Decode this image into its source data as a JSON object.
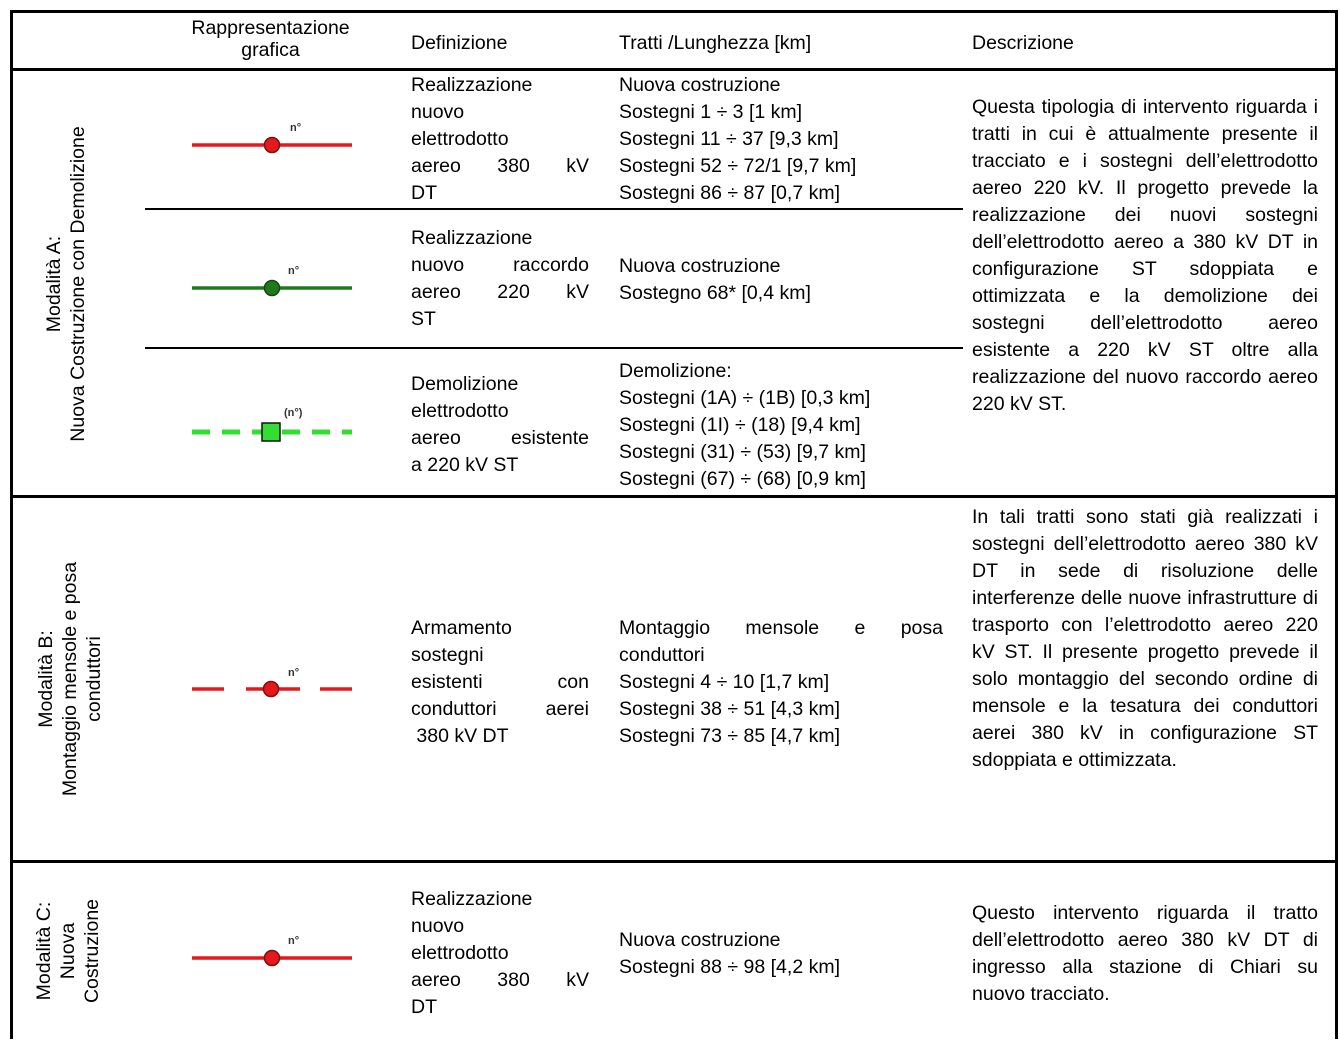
{
  "headers": {
    "grafica": "Rappresentazione grafica",
    "definizione": "Definizione",
    "tratti": "Tratti /Lunghezza [km]",
    "descrizione": "Descrizione"
  },
  "symbols": {
    "label_n": "n°",
    "label_n_paren": "(n°)",
    "red": "#e5191b",
    "green": "#1f7a1f",
    "light_green": "#33dd33"
  },
  "modalita_a": {
    "label_line1": "Modalità A:",
    "label_line2": "Nuova Costruzione con Demolizione",
    "rows": [
      {
        "definizione": [
          "Realizzazione",
          "nuovo",
          "elettrodotto",
          "aereo 380 kV",
          "DT"
        ],
        "tratti": [
          "Nuova costruzione",
          "Sostegni 1 ÷ 3 [1 km]",
          "Sostegni 11 ÷ 37 [9,3 km]",
          "Sostegni 52 ÷ 72/1 [9,7 km]",
          "Sostegni 86 ÷ 87 [0,7 km]"
        ]
      },
      {
        "definizione": [
          "Realizzazione",
          "nuovo raccordo",
          "aereo 220 kV",
          "ST"
        ],
        "tratti": [
          "Nuova costruzione",
          "Sostegno 68* [0,4 km]"
        ]
      },
      {
        "definizione": [
          "Demolizione",
          "elettrodotto",
          "aereo esistente",
          "a 220 kV ST"
        ],
        "tratti": [
          "Demolizione:",
          "Sostegni (1A) ÷ (1B) [0,3 km]",
          "Sostegni (1I) ÷ (18) [9,4 km]",
          "Sostegni (31) ÷ (53) [9,7 km]",
          "Sostegni (67) ÷ (68) [0,9 km]"
        ]
      }
    ],
    "descrizione": "Questa tipologia di intervento riguarda i tratti in cui è attualmente presente il tracciato e i sostegni dell’elettrodotto aereo 220 kV. Il progetto prevede la realizzazione dei nuovi sostegni dell’elettrodotto aereo a 380 kV DT in configurazione ST sdoppiata e ottimizzata e la demolizione dei sostegni dell’elettrodotto aereo esistente a 220 kV ST oltre alla realizzazione del nuovo raccordo aereo 220 kV ST."
  },
  "modalita_b": {
    "label_line1": "Modalità B:",
    "label_line2": "Montaggio mensole e posa",
    "label_line3": "conduttori",
    "definizione": [
      "Armamento",
      "sostegni",
      "esistenti con",
      "conduttori aerei",
      " 380 kV DT"
    ],
    "tratti": [
      "Montaggio mensole e posa",
      "conduttori",
      "Sostegni 4 ÷ 10 [1,7 km]",
      "Sostegni 38 ÷ 51 [4,3 km]",
      "Sostegni 73 ÷ 85 [4,7 km]"
    ],
    "descrizione": "In tali tratti sono stati già realizzati i sostegni dell’elettrodotto aereo 380 kV DT in sede di risoluzione delle interferenze delle nuove infrastrutture di trasporto con l’elettrodotto aereo 220 kV ST. Il presente progetto prevede il solo montaggio del secondo ordine di mensole e la tesatura dei conduttori aerei 380 kV in configurazione ST sdoppiata e ottimizzata."
  },
  "modalita_c": {
    "label_line1": "Modalità C:",
    "label_line2": "Nuova",
    "label_line3": "Costruzione",
    "definizione": [
      "Realizzazione",
      "nuovo",
      "elettrodotto",
      "aereo 380 kV",
      "DT"
    ],
    "tratti": [
      "Nuova costruzione",
      "Sostegni 88 ÷ 98 [4,2 km]"
    ],
    "descrizione": "Questo intervento riguarda il tratto dell’elettrodotto aereo 380 kV DT di ingresso alla stazione di Chiari su nuovo tracciato."
  }
}
